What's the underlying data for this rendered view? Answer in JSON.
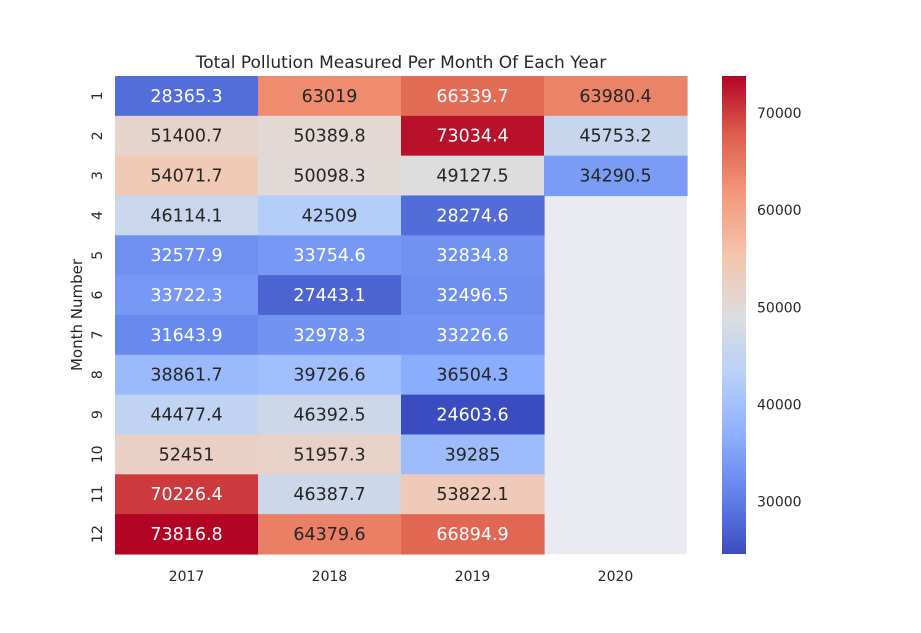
{
  "chart_data": {
    "type": "heatmap",
    "title": "Total Pollution Measured Per Month Of Each Year",
    "xlabel": "",
    "ylabel": "Month Number",
    "x_categories": [
      "2017",
      "2018",
      "2019",
      "2020"
    ],
    "y_categories": [
      "1",
      "2",
      "3",
      "4",
      "5",
      "6",
      "7",
      "8",
      "9",
      "10",
      "11",
      "12"
    ],
    "values": [
      [
        28365.3,
        63019,
        66339.7,
        63980.4
      ],
      [
        51400.7,
        50389.8,
        73034.4,
        45753.2
      ],
      [
        54071.7,
        50098.3,
        49127.5,
        34290.5
      ],
      [
        46114.1,
        42509,
        28274.6,
        null
      ],
      [
        32577.9,
        33754.6,
        32834.8,
        null
      ],
      [
        33722.3,
        27443.1,
        32496.5,
        null
      ],
      [
        31643.9,
        32978.3,
        33226.6,
        null
      ],
      [
        38861.7,
        39726.6,
        36504.3,
        null
      ],
      [
        44477.4,
        46392.5,
        24603.6,
        null
      ],
      [
        52451,
        51957.3,
        39285,
        null
      ],
      [
        70226.4,
        46387.7,
        53822.1,
        null
      ],
      [
        73816.8,
        64379.6,
        66894.9,
        null
      ]
    ],
    "cell_labels": [
      [
        "28365.3",
        "63019",
        "66339.7",
        "63980.4"
      ],
      [
        "51400.7",
        "50389.8",
        "73034.4",
        "45753.2"
      ],
      [
        "54071.7",
        "50098.3",
        "49127.5",
        "34290.5"
      ],
      [
        "46114.1",
        "42509",
        "28274.6",
        ""
      ],
      [
        "32577.9",
        "33754.6",
        "32834.8",
        ""
      ],
      [
        "33722.3",
        "27443.1",
        "32496.5",
        ""
      ],
      [
        "31643.9",
        "32978.3",
        "33226.6",
        ""
      ],
      [
        "38861.7",
        "39726.6",
        "36504.3",
        ""
      ],
      [
        "44477.4",
        "46392.5",
        "24603.6",
        ""
      ],
      [
        "52451",
        "51957.3",
        "39285",
        ""
      ],
      [
        "70226.4",
        "46387.7",
        "53822.1",
        ""
      ],
      [
        "73816.8",
        "64379.6",
        "66894.9",
        ""
      ]
    ],
    "colormap": "coolwarm",
    "color_range": [
      24603.6,
      73816.8
    ],
    "missing_color": "#eaeaf2",
    "colorbar_ticks": [
      30000,
      40000,
      50000,
      60000,
      70000
    ],
    "colorbar_tick_labels": [
      "30000",
      "40000",
      "50000",
      "60000",
      "70000"
    ],
    "grid": false
  }
}
